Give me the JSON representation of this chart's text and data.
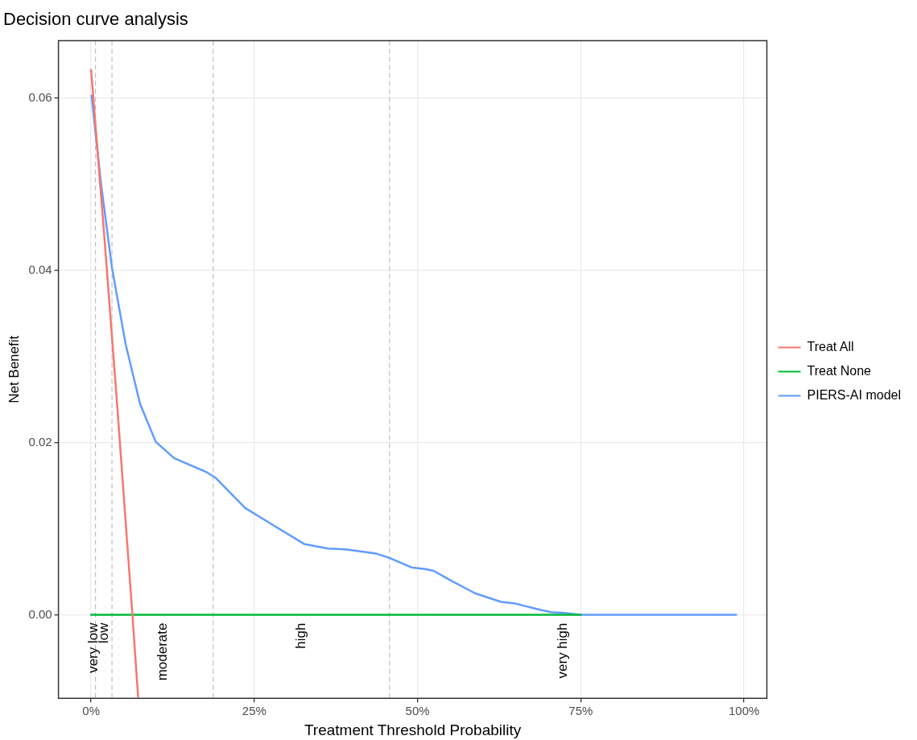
{
  "chart_data": {
    "type": "line",
    "title": "Decision curve analysis",
    "xlabel": "Treatment Threshold Probability",
    "ylabel": "Net Benefit",
    "xlim": [
      -5,
      103.5
    ],
    "ylim": [
      -0.0097,
      0.0667
    ],
    "xticks": [
      {
        "value": 0,
        "label": "0%"
      },
      {
        "value": 25,
        "label": "25%"
      },
      {
        "value": 50,
        "label": "50%"
      },
      {
        "value": 75,
        "label": "75%"
      },
      {
        "value": 100,
        "label": "100%"
      }
    ],
    "yticks": [
      {
        "value": 0,
        "label": "0.00"
      },
      {
        "value": 0.02,
        "label": "0.02"
      },
      {
        "value": 0.04,
        "label": "0.04"
      },
      {
        "value": 0.06,
        "label": "0.06"
      }
    ],
    "grid": true,
    "legend": "right",
    "marker": "none",
    "line_style": "solid",
    "series": [
      {
        "name": "Treat All",
        "color": "#f8766d",
        "x": [
          0,
          2,
          4,
          6.33,
          7.2
        ],
        "values": [
          0.0633,
          0.0442,
          0.0243,
          0,
          -0.0095
        ]
      },
      {
        "name": "Treat None",
        "color": "#00ba38",
        "x": [
          0,
          75
        ],
        "values": [
          0,
          0
        ]
      },
      {
        "name": "PIERS-AI model",
        "color": "#619cff",
        "x": [
          0.07,
          1.5,
          3.2,
          5.3,
          7.5,
          9.9,
          12.7,
          17.6,
          19.1,
          23.6,
          27.7,
          32.7,
          36.3,
          39,
          43.7,
          45.7,
          49.1,
          51.2,
          52.5,
          54.8,
          58.8,
          62.8,
          65,
          68.1,
          70.4,
          72.5,
          75,
          98.8
        ],
        "values": [
          0.0603,
          0.0502,
          0.0403,
          0.0314,
          0.0245,
          0.0201,
          0.0182,
          0.0166,
          0.0159,
          0.0124,
          0.0105,
          0.0082,
          0.0077,
          0.0076,
          0.0071,
          0.0066,
          0.0055,
          0.0053,
          0.0051,
          0.0041,
          0.0025,
          0.0015,
          0.0013,
          0.0007,
          0.0003,
          0.0002,
          0,
          0
        ]
      }
    ],
    "ref_lines": [
      {
        "axis": "x",
        "value": 0.67,
        "color": "#bebebe",
        "line_style": "dashed"
      },
      {
        "axis": "x",
        "value": 3.2,
        "color": "#bebebe",
        "line_style": "dashed"
      },
      {
        "axis": "x",
        "value": 18.7,
        "color": "#bebebe",
        "line_style": "dashed"
      },
      {
        "axis": "x",
        "value": 45.7,
        "color": "#bebebe",
        "line_style": "dashed"
      }
    ],
    "annotations": [
      "very low",
      "low",
      "moderate",
      "high",
      "very high"
    ]
  }
}
